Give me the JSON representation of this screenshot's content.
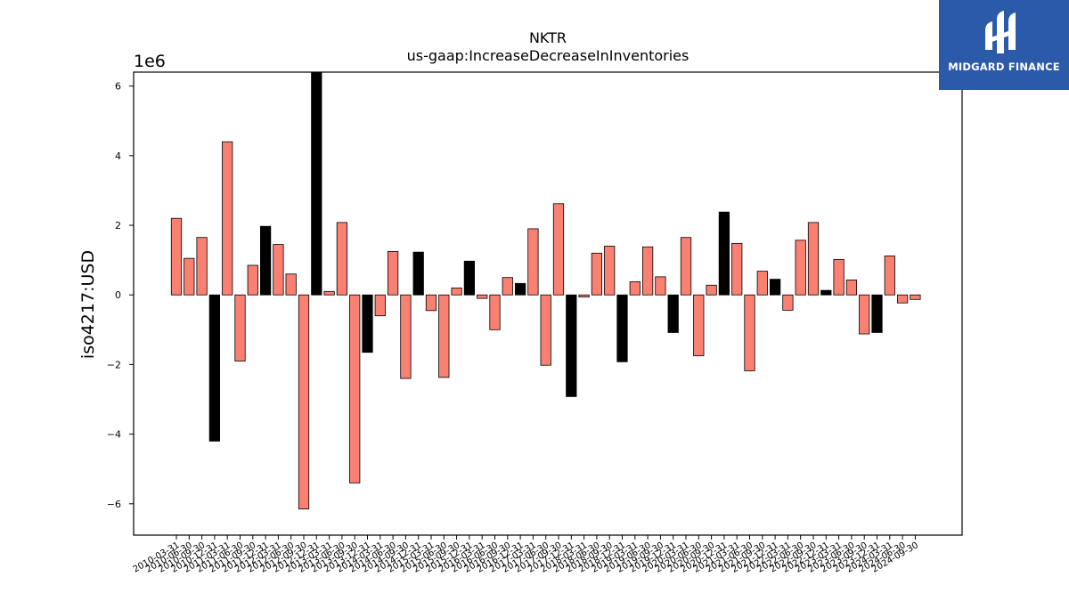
{
  "brand": {
    "name": "MIDGARD FINANCE",
    "color": "#2b5aa8"
  },
  "chart_data": {
    "type": "bar",
    "title": "NKTR",
    "subtitle": "us-gaap:IncreaseDecreaseInInventories",
    "ylabel": "iso4217:USD",
    "xlabel": "",
    "y_scale_label": "1e6",
    "ylim": [
      -6.9,
      6.4
    ],
    "yticks": [
      -6,
      -4,
      -2,
      0,
      2,
      4,
      6
    ],
    "colors": {
      "default": "#fa8072",
      "highlight": "#000000"
    },
    "grid": false,
    "categories": [
      "2010-03-31",
      "2010-06-30",
      "2010-09-30",
      "2010-12-31",
      "2011-03-31",
      "2011-06-30",
      "2011-09-30",
      "2011-12-31",
      "2012-03-31",
      "2012-06-30",
      "2012-09-30",
      "2012-12-31",
      "2013-03-31",
      "2013-06-30",
      "2013-09-30",
      "2013-12-31",
      "2014-03-31",
      "2014-06-30",
      "2014-09-30",
      "2014-12-31",
      "2015-03-31",
      "2015-06-30",
      "2015-09-30",
      "2015-12-31",
      "2016-03-31",
      "2016-06-30",
      "2016-09-30",
      "2016-12-31",
      "2017-03-31",
      "2017-06-30",
      "2017-09-30",
      "2017-12-31",
      "2018-03-31",
      "2018-06-30",
      "2018-09-30",
      "2018-12-31",
      "2019-03-31",
      "2019-06-30",
      "2019-09-30",
      "2019-12-31",
      "2020-03-31",
      "2020-06-30",
      "2020-09-30",
      "2020-12-31",
      "2021-03-31",
      "2021-06-30",
      "2021-09-30",
      "2021-12-31",
      "2022-03-31",
      "2022-06-30",
      "2022-09-30",
      "2022-12-31",
      "2023-03-31",
      "2023-06-30",
      "2023-09-30",
      "2023-12-31",
      "2024-03-31",
      "2024-06-30",
      "2024-09-30"
    ],
    "values": [
      2.2,
      1.05,
      1.65,
      -4.2,
      4.4,
      -1.9,
      0.85,
      1.97,
      1.45,
      0.6,
      -6.15,
      6.4,
      0.1,
      2.08,
      -5.4,
      -1.65,
      -0.6,
      1.25,
      -2.4,
      1.23,
      -0.45,
      -2.37,
      0.2,
      0.97,
      -0.1,
      -1.0,
      0.5,
      0.33,
      1.9,
      -2.02,
      2.62,
      -2.92,
      -0.06,
      1.2,
      1.4,
      -1.92,
      0.38,
      1.38,
      0.52,
      -1.08,
      1.65,
      -1.75,
      0.28,
      2.38,
      1.48,
      -2.18,
      0.68,
      0.45,
      -0.44,
      1.57,
      2.08,
      0.13,
      1.02,
      0.43,
      -1.12,
      -1.08,
      1.12,
      -0.23,
      -0.13
    ],
    "highlight": [
      false,
      false,
      false,
      true,
      false,
      false,
      false,
      true,
      false,
      false,
      false,
      true,
      false,
      false,
      false,
      true,
      false,
      false,
      false,
      true,
      false,
      false,
      false,
      true,
      false,
      false,
      false,
      true,
      false,
      false,
      false,
      true,
      false,
      false,
      false,
      true,
      false,
      false,
      false,
      true,
      false,
      false,
      false,
      true,
      false,
      false,
      false,
      true,
      false,
      false,
      false,
      true,
      false,
      false,
      false,
      true,
      false,
      false,
      false
    ]
  }
}
